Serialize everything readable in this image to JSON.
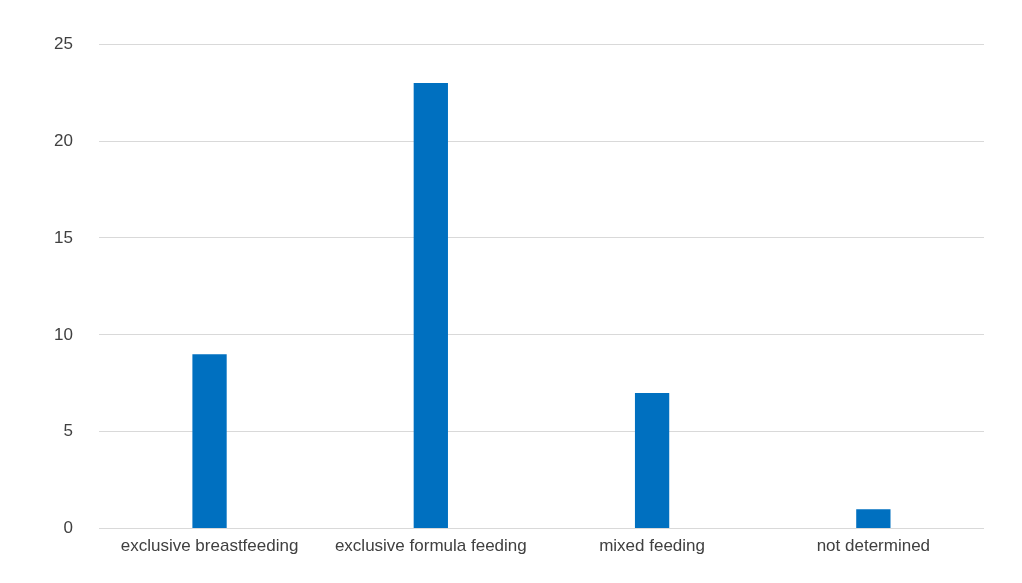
{
  "chart_data": {
    "type": "bar",
    "categories": [
      "exclusive breastfeeding",
      "exclusive formula feeding",
      "mixed feeding",
      "not determined"
    ],
    "values": [
      9,
      23,
      7,
      1
    ],
    "color": "#0070c0",
    "ylim": [
      0,
      25
    ],
    "yticks": [
      0,
      5,
      10,
      15,
      20,
      25
    ],
    "grid": "y"
  }
}
